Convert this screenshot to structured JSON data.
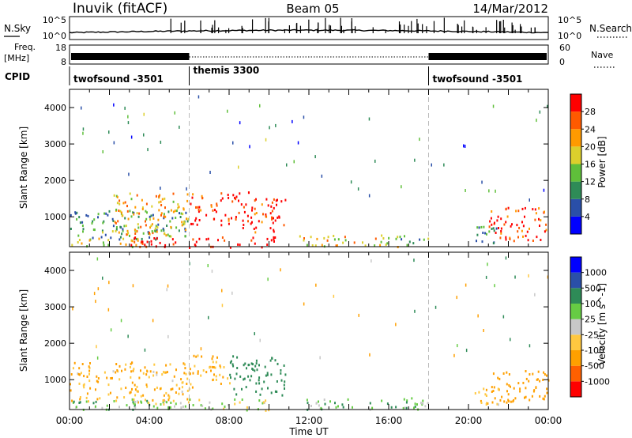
{
  "header": {
    "station": "Inuvik (fitACF)",
    "beam": "Beam 05",
    "date": "14/Mar/2012"
  },
  "noise_panel": {
    "left_label": "N.Sky",
    "right_label": "N.Search",
    "left_ticks": [
      "10^5",
      "10^0"
    ],
    "right_ticks": [
      "10^5",
      "10^0"
    ]
  },
  "freq_panel": {
    "left_label_1": "Freq.",
    "left_label_2": "[MHz]",
    "left_ticks": [
      "18",
      "8"
    ],
    "right_label": "Nave",
    "right_ticks": [
      "60",
      "0"
    ]
  },
  "cpid_panel": {
    "label": "CPID",
    "segments": [
      {
        "label": "twofsound -3501",
        "start_hour": 0
      },
      {
        "label": "themis 3300",
        "start_hour": 6
      },
      {
        "label": "twofsound -3501",
        "start_hour": 18
      }
    ]
  },
  "colors": {
    "power": [
      "#0000ff",
      "#2a4fa8",
      "#2e8b57",
      "#5fbf3a",
      "#dccf2c",
      "#ff9a00",
      "#ff5a00",
      "#ff0000"
    ],
    "velocity": [
      "#ff0000",
      "#ff6000",
      "#ffa000",
      "#ffc840",
      "#c8c8c8",
      "#66cc44",
      "#2e8b57",
      "#2a4fa8",
      "#0000ff"
    ]
  },
  "chart_data": [
    {
      "type": "heatmap",
      "name_id": "power-panel",
      "ylabel": "Slant Range [km]",
      "yticks": [
        1000,
        2000,
        3000,
        4000
      ],
      "ylim": [
        180,
        4500
      ],
      "xlim_hours": [
        0,
        24
      ],
      "colorbar_label": "Power [dB]",
      "colorbar_ticks": [
        "4",
        "8",
        "12",
        "16",
        "20",
        "24",
        "28"
      ],
      "zlim": [
        0,
        30
      ],
      "blobs": [
        {
          "t0": 0.0,
          "t1": 6.0,
          "r0": 400,
          "r1": 1200,
          "value": 10
        },
        {
          "t0": 0.0,
          "t1": 3.5,
          "r0": 200,
          "r1": 450,
          "value": 18
        },
        {
          "t0": 2.2,
          "t1": 6.0,
          "r0": 500,
          "r1": 1700,
          "value": 20
        },
        {
          "t0": 3.0,
          "t1": 10.5,
          "r0": 180,
          "r1": 480,
          "value": 28
        },
        {
          "t0": 6.0,
          "t1": 8.5,
          "r0": 800,
          "r1": 1700,
          "value": 28
        },
        {
          "t0": 8.5,
          "t1": 10.8,
          "r0": 600,
          "r1": 1700,
          "value": 27
        },
        {
          "t0": 11.5,
          "t1": 16.5,
          "r0": 200,
          "r1": 520,
          "value": 18
        },
        {
          "t0": 16.5,
          "t1": 18.0,
          "r0": 220,
          "r1": 500,
          "value": 10
        },
        {
          "t0": 21.0,
          "t1": 24.0,
          "r0": 350,
          "r1": 1300,
          "value": 26
        },
        {
          "t0": 20.0,
          "t1": 21.5,
          "r0": 300,
          "r1": 800,
          "value": 9
        }
      ]
    },
    {
      "type": "heatmap",
      "name_id": "velocity-panel",
      "ylabel": "Slant Range [km]",
      "yticks": [
        1000,
        2000,
        3000,
        4000
      ],
      "ylim": [
        180,
        4500
      ],
      "xlim_hours": [
        0,
        24
      ],
      "xticks": [
        "00:00",
        "04:00",
        "08:00",
        "12:00",
        "16:00",
        "20:00",
        "00:00"
      ],
      "xlabel": "Time UT",
      "colorbar_label": "Velocity [m s^-1]",
      "colorbar_ticks": [
        "-1000",
        "-500",
        "-100",
        "-25",
        "25",
        "100",
        "500",
        "1000"
      ],
      "blobs": [
        {
          "t0": 0.0,
          "t1": 6.0,
          "r0": 400,
          "r1": 1500,
          "value": -120
        },
        {
          "t0": 0.0,
          "t1": 5.0,
          "r0": 180,
          "r1": 450,
          "value": 60
        },
        {
          "t0": 3.0,
          "t1": 10.0,
          "r0": 180,
          "r1": 500,
          "value": 0
        },
        {
          "t0": 6.0,
          "t1": 8.0,
          "r0": 800,
          "r1": 1700,
          "value": -120
        },
        {
          "t0": 8.0,
          "t1": 10.8,
          "r0": 600,
          "r1": 1700,
          "value": 300
        },
        {
          "t0": 11.5,
          "t1": 18.0,
          "r0": 200,
          "r1": 520,
          "value": 90
        },
        {
          "t0": 21.0,
          "t1": 24.0,
          "r0": 400,
          "r1": 1300,
          "value": -400
        },
        {
          "t0": 20.0,
          "t1": 21.5,
          "r0": 300,
          "r1": 800,
          "value": -80
        }
      ]
    }
  ]
}
